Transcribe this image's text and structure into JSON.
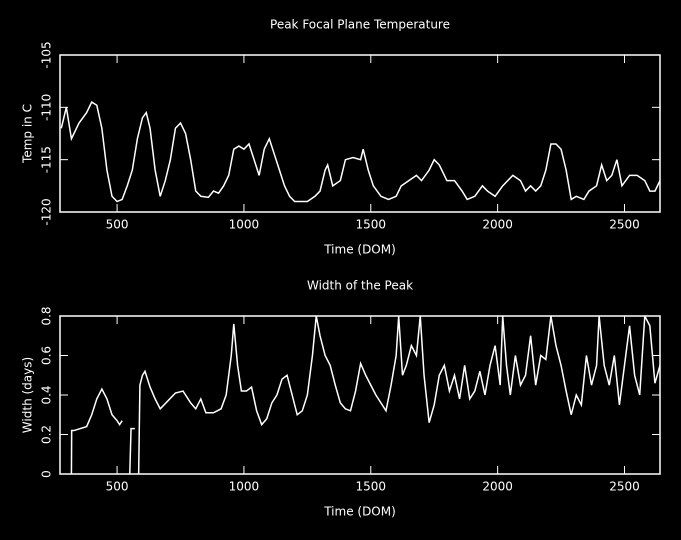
{
  "chart_data": [
    {
      "type": "line",
      "title": "Peak Focal Plane Temperature",
      "x_label": "Time (DOM)",
      "y_label": "Temp in C",
      "xlim": [
        275,
        2640
      ],
      "xticks": [
        500,
        1000,
        1500,
        2000,
        2500
      ],
      "ylim": [
        -120,
        -105
      ],
      "yticks": [
        -120,
        -115,
        -110,
        -105
      ],
      "series": [
        {
          "color": "#ffffff",
          "x": [
            280,
            300,
            320,
            350,
            380,
            400,
            420,
            440,
            460,
            480,
            500,
            520,
            540,
            560,
            580,
            600,
            615,
            630,
            650,
            670,
            690,
            710,
            730,
            750,
            770,
            790,
            810,
            830,
            860,
            880,
            900,
            920,
            940,
            960,
            980,
            1000,
            1020,
            1040,
            1060,
            1080,
            1100,
            1120,
            1140,
            1160,
            1180,
            1200,
            1250,
            1280,
            1300,
            1320,
            1330,
            1350,
            1380,
            1400,
            1430,
            1460,
            1470,
            1490,
            1510,
            1540,
            1570,
            1600,
            1620,
            1650,
            1680,
            1700,
            1730,
            1750,
            1770,
            1800,
            1830,
            1860,
            1880,
            1910,
            1940,
            1960,
            1990,
            2020,
            2040,
            2060,
            2090,
            2110,
            2130,
            2150,
            2170,
            2190,
            2210,
            2230,
            2250,
            2270,
            2290,
            2310,
            2340,
            2360,
            2390,
            2410,
            2430,
            2450,
            2470,
            2490,
            2520,
            2550,
            2580,
            2600,
            2620,
            2640
          ],
          "values": [
            -112,
            -110,
            -113,
            -111.5,
            -110.5,
            -109.5,
            -109.8,
            -112,
            -116,
            -118.5,
            -119,
            -118.8,
            -117.5,
            -116,
            -113,
            -111,
            -110.5,
            -112,
            -116,
            -118.5,
            -117,
            -115,
            -112,
            -111.5,
            -112.5,
            -115,
            -118,
            -118.5,
            -118.6,
            -118,
            -118.2,
            -117.5,
            -116.5,
            -114,
            -113.7,
            -114,
            -113.5,
            -115,
            -116.5,
            -114,
            -113,
            -114.5,
            -116,
            -117.5,
            -118.5,
            -119,
            -119,
            -118.5,
            -118,
            -116,
            -115.5,
            -117.5,
            -117,
            -115,
            -114.8,
            -115,
            -114,
            -116,
            -117.5,
            -118.5,
            -118.8,
            -118.5,
            -117.5,
            -117,
            -116.5,
            -117,
            -116,
            -115,
            -115.5,
            -117,
            -117,
            -118,
            -118.8,
            -118.5,
            -117.5,
            -118,
            -118.5,
            -117.5,
            -117,
            -116.5,
            -117,
            -118,
            -117.5,
            -118,
            -117.5,
            -116,
            -113.5,
            -113.5,
            -114,
            -116,
            -118.8,
            -118.5,
            -118.8,
            -118,
            -117.5,
            -115.5,
            -117,
            -116.5,
            -115,
            -117.5,
            -116.5,
            -116.5,
            -117,
            -118,
            -118,
            -117
          ]
        }
      ]
    },
    {
      "type": "line",
      "title": "Width of the Peak",
      "x_label": "Time (DOM)",
      "y_label": "Width (days)",
      "xlim": [
        275,
        2640
      ],
      "xticks": [
        500,
        1000,
        1500,
        2000,
        2500
      ],
      "ylim": [
        0,
        0.8
      ],
      "yticks": [
        0,
        0.2,
        0.4,
        0.6,
        0.8
      ],
      "series": [
        {
          "color": "#ffffff",
          "x": [
            320,
            321,
            330,
            380,
            400,
            420,
            440,
            460,
            480,
            500,
            510,
            520,
            535,
            550,
            555,
            570,
            580,
            585,
            590,
            600,
            610,
            630,
            650,
            670,
            700,
            730,
            760,
            790,
            810,
            830,
            850,
            880,
            910,
            930,
            950,
            960,
            975,
            990,
            1010,
            1030,
            1050,
            1070,
            1090,
            1110,
            1130,
            1150,
            1170,
            1190,
            1210,
            1230,
            1250,
            1270,
            1285,
            1300,
            1320,
            1340,
            1360,
            1380,
            1400,
            1420,
            1440,
            1460,
            1480,
            1500,
            1520,
            1540,
            1560,
            1580,
            1600,
            1610,
            1625,
            1640,
            1660,
            1680,
            1695,
            1710,
            1730,
            1750,
            1770,
            1790,
            1810,
            1830,
            1850,
            1870,
            1890,
            1910,
            1930,
            1950,
            1970,
            1990,
            2010,
            2020,
            2035,
            2050,
            2070,
            2090,
            2110,
            2130,
            2150,
            2170,
            2190,
            2210,
            2230,
            2250,
            2270,
            2290,
            2310,
            2330,
            2350,
            2370,
            2390,
            2400,
            2420,
            2440,
            2460,
            2480,
            2500,
            2520,
            2540,
            2560,
            2580,
            2600,
            2620,
            2640
          ],
          "values": [
            0,
            0.22,
            0.22,
            0.24,
            0.3,
            0.38,
            0.43,
            0.38,
            0.3,
            0.27,
            0.25,
            0.27,
            null,
            0,
            0.23,
            0.23,
            null,
            0,
            0.45,
            0.5,
            0.52,
            0.44,
            0.38,
            0.33,
            0.37,
            0.41,
            0.42,
            0.36,
            0.33,
            0.38,
            0.31,
            0.31,
            0.33,
            0.4,
            0.6,
            0.76,
            0.55,
            0.42,
            0.42,
            0.44,
            0.32,
            0.25,
            0.28,
            0.36,
            0.4,
            0.48,
            0.5,
            0.4,
            0.3,
            0.32,
            0.4,
            0.6,
            0.8,
            0.7,
            0.6,
            0.55,
            0.45,
            0.36,
            0.33,
            0.32,
            0.42,
            0.56,
            0.5,
            0.45,
            0.4,
            0.36,
            0.32,
            0.45,
            0.6,
            0.8,
            0.5,
            0.55,
            0.65,
            0.6,
            0.8,
            0.5,
            0.26,
            0.35,
            0.5,
            0.55,
            0.42,
            0.5,
            0.38,
            0.55,
            0.38,
            0.42,
            0.52,
            0.4,
            0.55,
            0.65,
            0.45,
            0.8,
            0.55,
            0.4,
            0.6,
            0.45,
            0.5,
            0.7,
            0.45,
            0.6,
            0.58,
            0.8,
            0.65,
            0.55,
            0.42,
            0.3,
            0.4,
            0.35,
            0.6,
            0.45,
            0.55,
            0.8,
            0.55,
            0.45,
            0.6,
            0.35,
            0.55,
            0.75,
            0.5,
            0.4,
            0.8,
            0.75,
            0.46,
            0.55
          ]
        }
      ]
    }
  ]
}
